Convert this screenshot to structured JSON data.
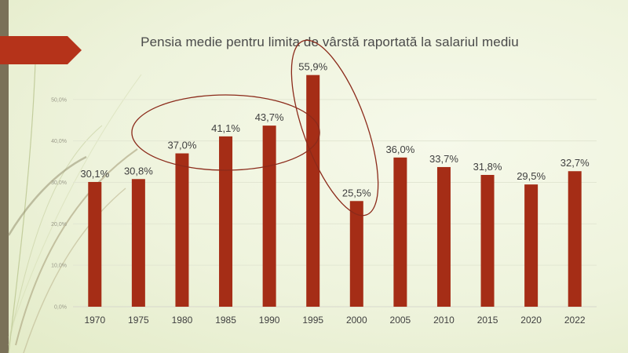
{
  "colors": {
    "bar": "#a52d16",
    "ellipse": "#8b2a1a",
    "arrow": "#b5331a",
    "sidebar": "#7a7158"
  },
  "decor": {
    "left_arrow_icon": "arrow-right-icon",
    "swoosh": "decorative-curves"
  },
  "chart_data": {
    "type": "bar",
    "title": "Pensia medie pentru limita de vârstă raportată la salariul mediu",
    "categories": [
      "1970",
      "1975",
      "1980",
      "1985",
      "1990",
      "1995",
      "2000",
      "2005",
      "2010",
      "2015",
      "2020",
      "2022"
    ],
    "values": [
      30.1,
      30.8,
      37.0,
      41.1,
      43.7,
      55.9,
      25.5,
      36.0,
      33.7,
      31.8,
      29.5,
      32.7
    ],
    "data_labels": [
      "30,1%",
      "30,8%",
      "37,0%",
      "41,1%",
      "43,7%",
      "55,9%",
      "25,5%",
      "36,0%",
      "33,7%",
      "31,8%",
      "29,5%",
      "32,7%"
    ],
    "y_ticks": [
      "0,0%",
      "10,0%",
      "20,0%",
      "30,0%",
      "40,0%",
      "50,0%"
    ],
    "y_tick_values": [
      0,
      10,
      20,
      30,
      40,
      50
    ],
    "ylim": [
      0,
      60
    ],
    "grid": true,
    "xlabel": "",
    "ylabel": "",
    "annotations": [
      {
        "type": "ellipse",
        "covers": [
          "1980",
          "1985",
          "1990"
        ]
      },
      {
        "type": "ellipse",
        "covers": [
          "1995",
          "2000"
        ]
      }
    ]
  }
}
